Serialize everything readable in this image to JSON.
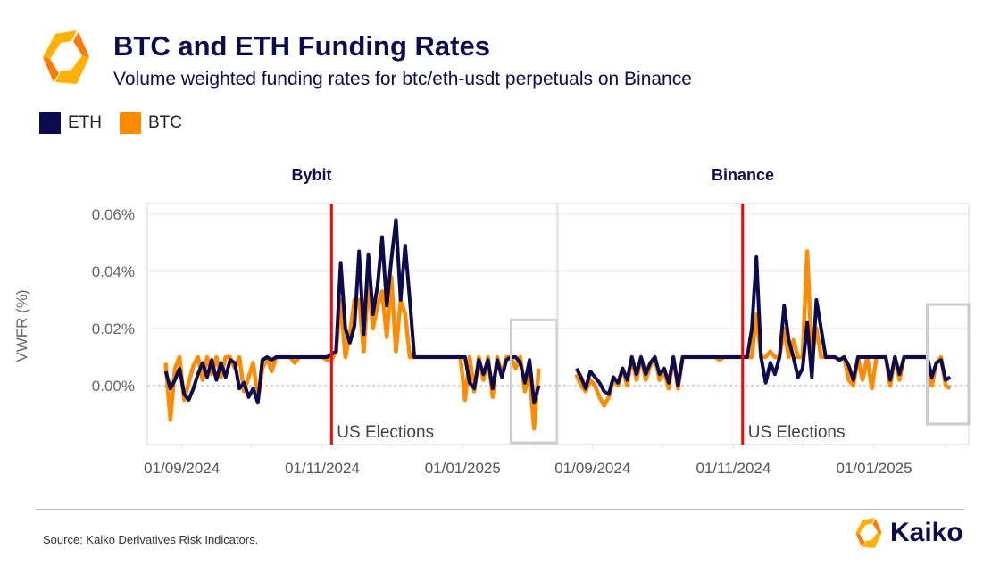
{
  "header": {
    "title": "BTC and ETH Funding Rates",
    "subtitle": "Volume weighted funding rates for btc/eth-usdt perpetuals on Binance"
  },
  "legend": [
    {
      "label": "ETH",
      "color": "#0d0b4f"
    },
    {
      "label": "BTC",
      "color": "#ff8c00"
    }
  ],
  "footer": {
    "source": "Source: Kaiko Derivatives Risk Indicators.",
    "brand": "Kaiko"
  },
  "chart_data": [
    {
      "type": "line",
      "title": "Bybit",
      "ylabel": "VWFR (%)",
      "ylim": [
        -0.0206,
        0.0637
      ],
      "yticks": [
        0,
        0.02,
        0.04,
        0.06
      ],
      "ytick_labels": [
        "0.00%",
        "0.02%",
        "0.04%",
        "0.06%"
      ],
      "x_start": "2024-08-25",
      "x_step_days": 2,
      "xlim_days": [
        -8,
        170
      ],
      "xticks_days": [
        7,
        68,
        129
      ],
      "xtick_labels": [
        "01/09/2024",
        "01/11/2024",
        "01/01/2025"
      ],
      "annotation": {
        "label": "US Elections",
        "day": 72,
        "color": "#ff0000"
      },
      "highlight_box": {
        "day_range": [
          150,
          170
        ],
        "value_range": [
          -0.02,
          0.023
        ]
      },
      "series": [
        {
          "name": "BTC",
          "color": "#ff8c00",
          "values": [
            0.008,
            -0.012,
            0.006,
            0.01,
            -0.005,
            0.001,
            0.007,
            0.01,
            0.002,
            0.01,
            0.004,
            0.01,
            0.003,
            0.01,
            0.01,
            0.006,
            0.01,
            -0.002,
            0.003,
            0.008,
            -0.005,
            0.006,
            0.01,
            0.005,
            0.01,
            0.01,
            0.01,
            0.01,
            0.008,
            0.01,
            0.01,
            0.01,
            0.01,
            0.01,
            0.01,
            0.009,
            0.009,
            0.012,
            0.03,
            0.01,
            0.018,
            0.03,
            0.03,
            0.012,
            0.036,
            0.02,
            0.028,
            0.033,
            0.017,
            0.038,
            0.012,
            0.03,
            0.025,
            0.01,
            0.01,
            0.01,
            0.01,
            0.01,
            0.01,
            0.01,
            0.01,
            0.01,
            0.01,
            0.01,
            0.01,
            -0.005,
            0.01,
            -0.002,
            0.01,
            0.002,
            0.01,
            -0.004,
            0.01,
            0.004,
            0.01,
            0.01,
            0.006,
            0.01,
            -0.002,
            0.004,
            -0.015,
            0.006
          ]
        },
        {
          "name": "ETH",
          "color": "#0d0b4f",
          "values": [
            0.005,
            -0.001,
            0.002,
            0.006,
            -0.003,
            -0.005,
            -0.001,
            0.004,
            0.008,
            0.003,
            0.009,
            0.002,
            0.008,
            0.003,
            0.009,
            0.008,
            -0.001,
            0.001,
            -0.004,
            -0.001,
            -0.006,
            0.009,
            0.01,
            0.009,
            0.01,
            0.01,
            0.01,
            0.01,
            0.01,
            0.01,
            0.01,
            0.01,
            0.01,
            0.01,
            0.01,
            0.01,
            0.011,
            0.012,
            0.043,
            0.02,
            0.015,
            0.021,
            0.047,
            0.018,
            0.046,
            0.025,
            0.035,
            0.052,
            0.028,
            0.044,
            0.058,
            0.03,
            0.049,
            0.03,
            0.01,
            0.01,
            0.01,
            0.01,
            0.01,
            0.01,
            0.01,
            0.01,
            0.01,
            0.01,
            0.01,
            0.01,
            0.001,
            -0.001,
            0.009,
            0.004,
            0.009,
            -0.001,
            0.009,
            0.003,
            0.009,
            0.01,
            0.01,
            0.008,
            0.001,
            0.009,
            -0.006,
            0.0
          ]
        }
      ]
    },
    {
      "type": "line",
      "title": "Binance",
      "ylim": [
        -0.0206,
        0.0637
      ],
      "x_start": "2024-08-25",
      "x_step_days": 2,
      "xlim_days": [
        -8,
        170
      ],
      "xticks_days": [
        7,
        68,
        129
      ],
      "xtick_labels": [
        "01/09/2024",
        "01/11/2024",
        "01/01/2025"
      ],
      "annotation": {
        "label": "US Elections",
        "day": 72,
        "color": "#ff0000"
      },
      "highlight_box": {
        "day_range": [
          152,
          170
        ],
        "value_range": [
          -0.0134,
          0.0284
        ]
      },
      "series": [
        {
          "name": "BTC",
          "color": "#ff8c00",
          "values": [
            0.004,
            0.0,
            -0.002,
            0.002,
            0.0,
            -0.004,
            -0.007,
            -0.004,
            0.002,
            0.0,
            0.006,
            0.0,
            0.01,
            0.002,
            0.01,
            0.002,
            0.007,
            0.01,
            0.002,
            0.005,
            -0.001,
            0.01,
            -0.001,
            0.01,
            0.01,
            0.01,
            0.01,
            0.01,
            0.01,
            0.01,
            0.01,
            0.009,
            0.01,
            0.01,
            0.01,
            0.01,
            0.01,
            0.01,
            0.01,
            0.025,
            0.01,
            0.01,
            0.012,
            0.01,
            0.01,
            0.02,
            0.01,
            0.016,
            0.01,
            0.01,
            0.047,
            0.01,
            0.02,
            0.01,
            0.01,
            0.01,
            0.01,
            0.009,
            0.01,
            0.002,
            0.0,
            0.01,
            0.002,
            0.01,
            -0.001,
            0.01,
            0.01,
            0.01,
            0.0,
            0.01,
            0.002,
            0.01,
            0.01,
            0.01,
            0.01,
            0.01,
            0.01,
            0.0,
            0.008,
            0.01,
            0.0,
            -0.001
          ]
        },
        {
          "name": "ETH",
          "color": "#0d0b4f",
          "values": [
            0.006,
            0.003,
            -0.001,
            0.005,
            0.003,
            0.001,
            -0.002,
            -0.003,
            0.003,
            0.001,
            0.006,
            0.002,
            0.01,
            0.004,
            0.01,
            0.004,
            0.008,
            0.01,
            0.004,
            0.006,
            0.001,
            0.01,
            0.0,
            0.01,
            0.01,
            0.01,
            0.01,
            0.01,
            0.01,
            0.01,
            0.01,
            0.01,
            0.01,
            0.01,
            0.01,
            0.01,
            0.01,
            0.01,
            0.02,
            0.045,
            0.01,
            0.001,
            0.008,
            0.004,
            0.01,
            0.028,
            0.016,
            0.01,
            0.003,
            0.006,
            0.022,
            0.003,
            0.03,
            0.02,
            0.01,
            0.01,
            0.01,
            0.009,
            0.01,
            0.007,
            0.002,
            0.01,
            0.01,
            0.01,
            0.01,
            0.01,
            0.01,
            0.01,
            0.002,
            0.01,
            0.004,
            0.01,
            0.01,
            0.01,
            0.01,
            0.01,
            0.01,
            0.003,
            0.008,
            0.009,
            0.002,
            0.003
          ]
        }
      ]
    }
  ]
}
